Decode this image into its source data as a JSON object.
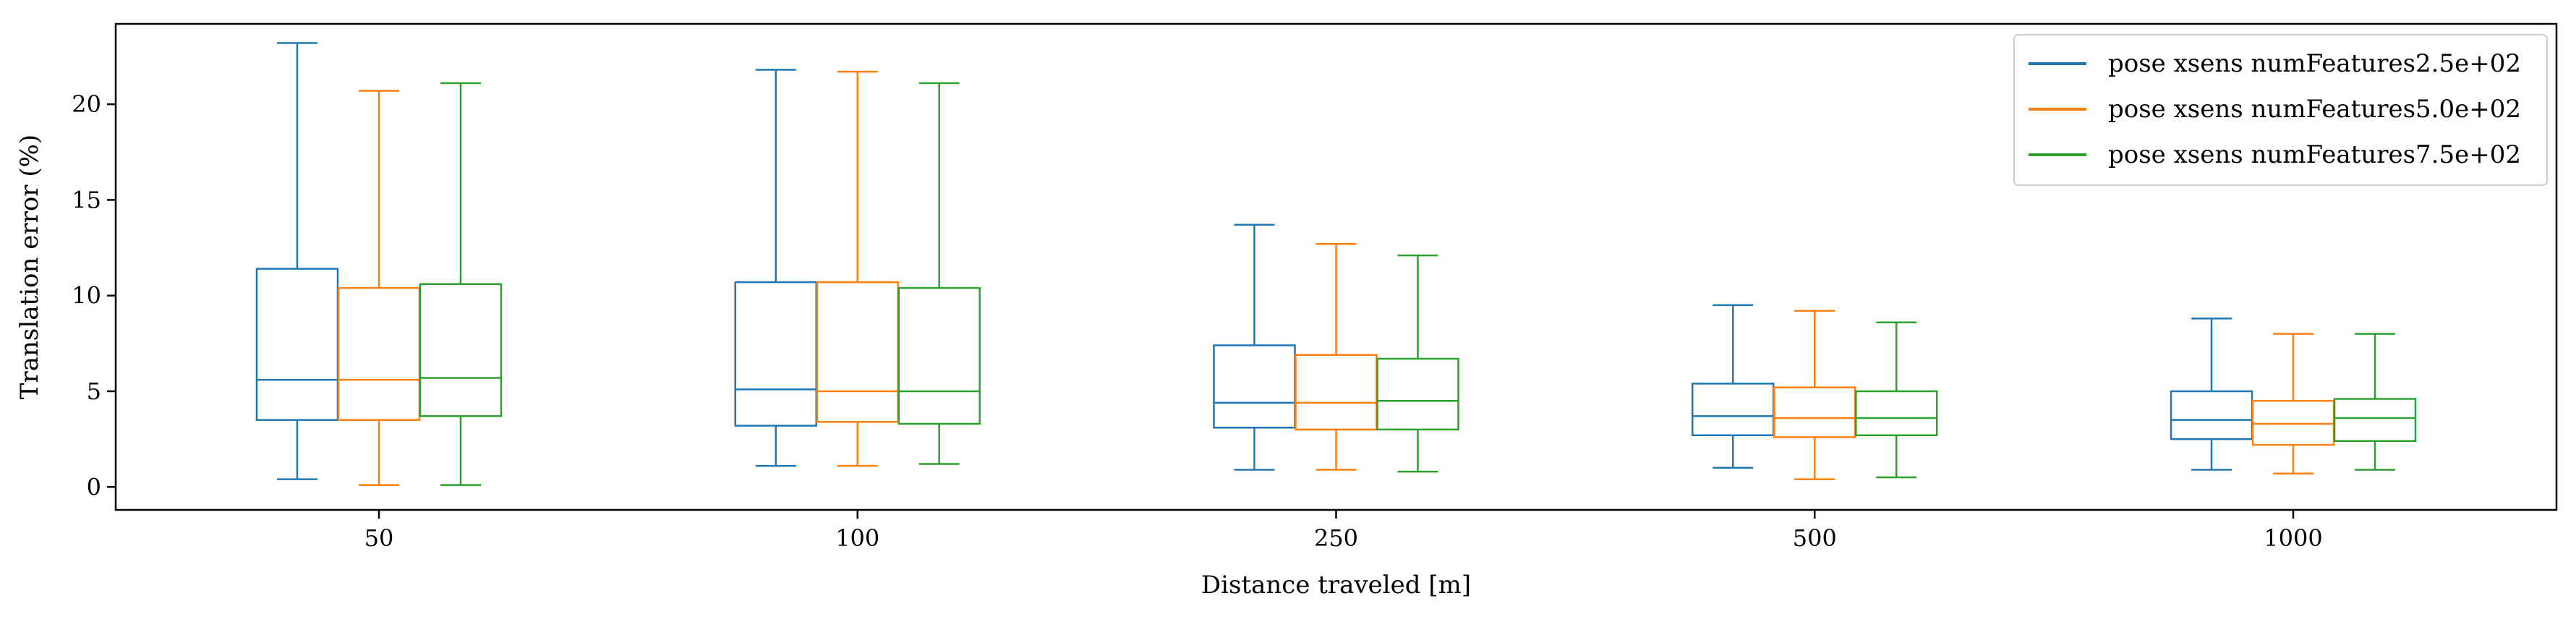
{
  "chart_data": {
    "type": "box",
    "xlabel": "Distance traveled [m]",
    "ylabel": "Translation error (%)",
    "ylim": [
      -1.2,
      24.2
    ],
    "yticks": [
      0,
      5,
      10,
      15,
      20
    ],
    "categories": [
      "50",
      "100",
      "250",
      "500",
      "1000"
    ],
    "grid": false,
    "legend_position": "top-right",
    "series": [
      {
        "name": "pose xsens numFeatures2.5e+02",
        "color": "#1f77b4",
        "boxes": [
          {
            "whisker_low": 0.4,
            "q1": 3.5,
            "median": 5.6,
            "q3": 11.4,
            "whisker_high": 23.2
          },
          {
            "whisker_low": 1.1,
            "q1": 3.2,
            "median": 5.1,
            "q3": 10.7,
            "whisker_high": 21.8
          },
          {
            "whisker_low": 0.9,
            "q1": 3.1,
            "median": 4.4,
            "q3": 7.4,
            "whisker_high": 13.7
          },
          {
            "whisker_low": 1.0,
            "q1": 2.7,
            "median": 3.7,
            "q3": 5.4,
            "whisker_high": 9.5
          },
          {
            "whisker_low": 0.9,
            "q1": 2.5,
            "median": 3.5,
            "q3": 5.0,
            "whisker_high": 8.8
          }
        ]
      },
      {
        "name": "pose xsens numFeatures5.0e+02",
        "color": "#ff7f0e",
        "boxes": [
          {
            "whisker_low": 0.1,
            "q1": 3.5,
            "median": 5.6,
            "q3": 10.4,
            "whisker_high": 20.7
          },
          {
            "whisker_low": 1.1,
            "q1": 3.4,
            "median": 5.0,
            "q3": 10.7,
            "whisker_high": 21.7
          },
          {
            "whisker_low": 0.9,
            "q1": 3.0,
            "median": 4.4,
            "q3": 6.9,
            "whisker_high": 12.7
          },
          {
            "whisker_low": 0.4,
            "q1": 2.6,
            "median": 3.6,
            "q3": 5.2,
            "whisker_high": 9.2
          },
          {
            "whisker_low": 0.7,
            "q1": 2.2,
            "median": 3.3,
            "q3": 4.5,
            "whisker_high": 8.0
          }
        ]
      },
      {
        "name": "pose xsens numFeatures7.5e+02",
        "color": "#2ca02c",
        "boxes": [
          {
            "whisker_low": 0.1,
            "q1": 3.7,
            "median": 5.7,
            "q3": 10.6,
            "whisker_high": 21.1
          },
          {
            "whisker_low": 1.2,
            "q1": 3.3,
            "median": 5.0,
            "q3": 10.4,
            "whisker_high": 21.1
          },
          {
            "whisker_low": 0.8,
            "q1": 3.0,
            "median": 4.5,
            "q3": 6.7,
            "whisker_high": 12.1
          },
          {
            "whisker_low": 0.5,
            "q1": 2.7,
            "median": 3.6,
            "q3": 5.0,
            "whisker_high": 8.6
          },
          {
            "whisker_low": 0.9,
            "q1": 2.4,
            "median": 3.6,
            "q3": 4.6,
            "whisker_high": 8.0
          }
        ]
      }
    ]
  }
}
